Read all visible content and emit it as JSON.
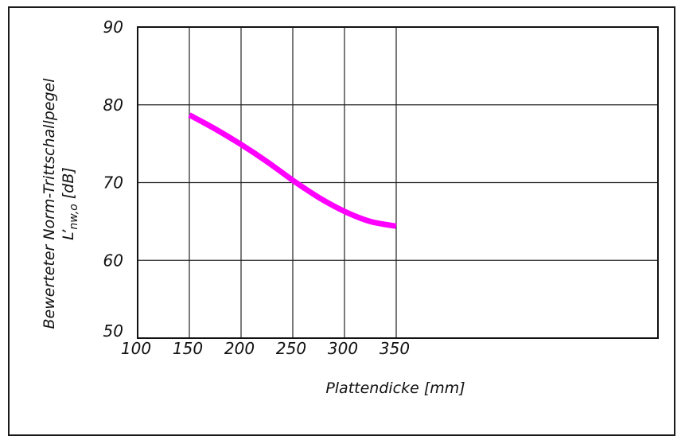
{
  "chart_data": {
    "type": "line",
    "title": "",
    "xlabel": "Plattendicke [mm]",
    "ylabel_line1": "Bewerteter Norm-Trittschallpegel",
    "ylabel_line2_main": "L’",
    "ylabel_line2_sub": "nw,o",
    "ylabel_line2_unit": " [dB]",
    "xlim": [
      100,
      375
    ],
    "ylim": [
      50,
      90
    ],
    "x_ticks": [
      100,
      150,
      200,
      250,
      300,
      350
    ],
    "y_ticks": [
      50,
      60,
      70,
      80,
      90
    ],
    "grid": true,
    "series": [
      {
        "color": "#ff00ff",
        "x": [
          150,
          175,
          200,
          225,
          250,
          275,
          300,
          325,
          350
        ],
        "y": [
          78.7,
          76.9,
          74.9,
          72.7,
          70.3,
          68.1,
          66.3,
          65.0,
          64.4
        ]
      }
    ]
  }
}
